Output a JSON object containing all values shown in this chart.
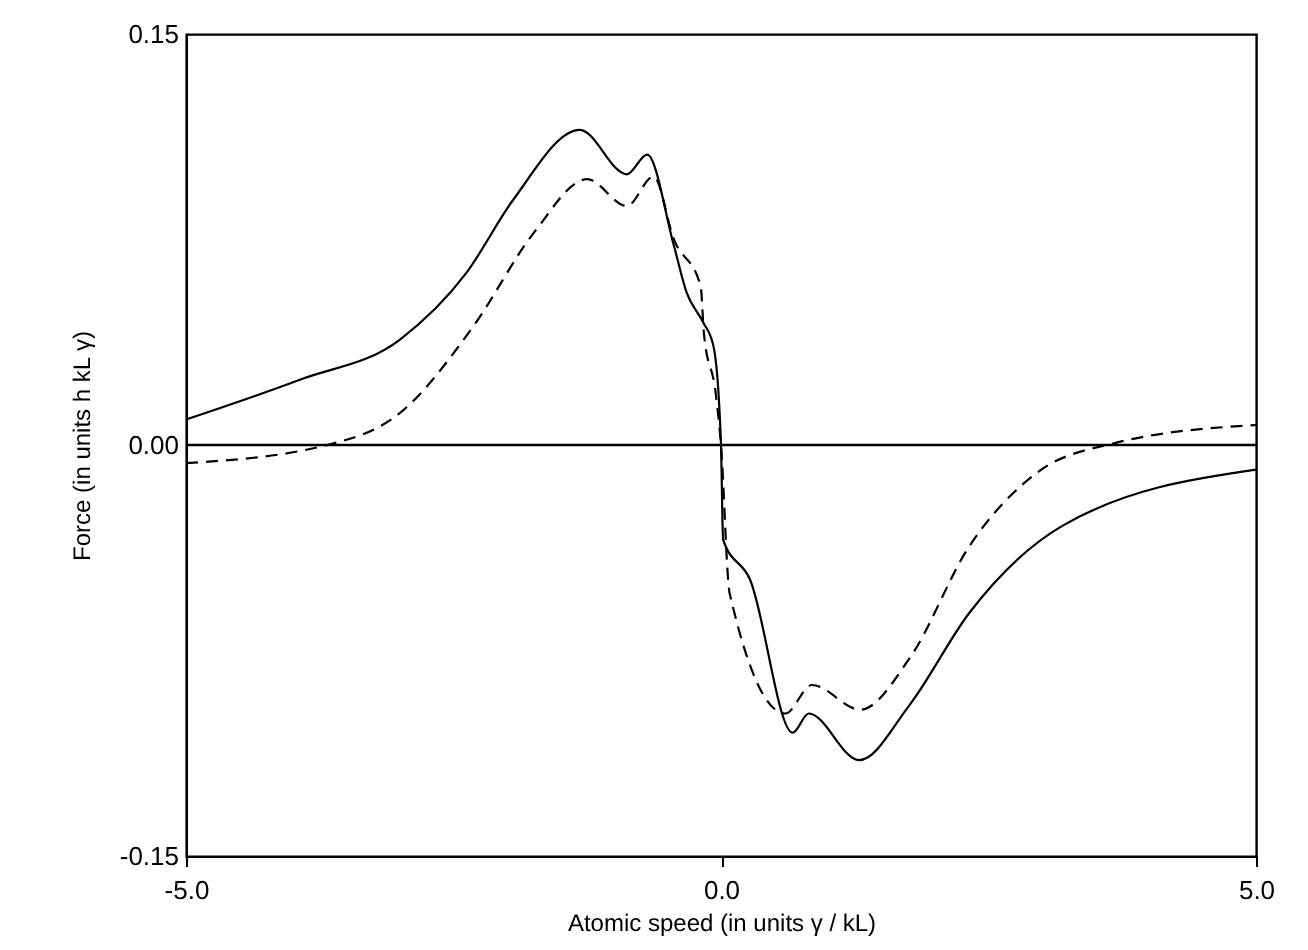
{
  "chart_data": {
    "type": "line",
    "xlabel": "Atomic speed (in units γ / kL)",
    "ylabel": "Force (in units h kL γ)",
    "xlim": [
      -5.0,
      5.0
    ],
    "xticks": [
      {
        "value": -5,
        "label": "-5.0"
      },
      {
        "value": 0,
        "label": "0.0"
      },
      {
        "value": 5,
        "label": "5.0"
      }
    ],
    "ylim": [
      -0.15,
      0.15
    ],
    "yticks": [
      {
        "value": -0.15,
        "label": "-0.15"
      },
      {
        "value": 0,
        "label": "0.00"
      },
      {
        "value": 0.15,
        "label": "0.15"
      }
    ],
    "grid": false,
    "ref_lines": [
      {
        "axis": "y",
        "value": 0,
        "color": "#000000",
        "line_style": "solid"
      }
    ],
    "series": [
      {
        "color": "#000000",
        "line_style": "solid",
        "x": [
          -5.0,
          -3.93,
          -3.0,
          -2.38,
          -1.94,
          -1.32,
          -0.88,
          -0.69,
          -0.44,
          -0.32,
          -0.17,
          -0.07,
          -0.01,
          0.0,
          0.02,
          0.27,
          0.67,
          0.82,
          1.29,
          1.76,
          2.32,
          3.19,
          5.0
        ],
        "values": [
          0.0093,
          0.0239,
          0.0385,
          0.0628,
          0.0896,
          0.115,
          0.0988,
          0.106,
          0.0727,
          0.0555,
          0.045,
          0.036,
          0.0093,
          0.0,
          -0.0345,
          -0.049,
          -0.105,
          -0.098,
          -0.115,
          -0.095,
          -0.0613,
          -0.0295,
          -0.009
        ]
      },
      {
        "color": "#000000",
        "line_style": "dashed",
        "x": [
          -5.0,
          -3.68,
          -3.0,
          -2.31,
          -1.75,
          -1.25,
          -0.88,
          -0.63,
          -0.44,
          -0.19,
          -0.16,
          -0.05,
          0.0,
          0.08,
          0.6,
          0.85,
          1.3,
          1.76,
          2.32,
          2.95,
          3.68,
          5.0
        ],
        "values": [
          -0.0066,
          0.0,
          0.0117,
          0.0436,
          0.0774,
          0.097,
          0.0872,
          0.098,
          0.075,
          0.058,
          0.0409,
          0.019,
          0.0,
          -0.054,
          -0.098,
          -0.0876,
          -0.0966,
          -0.078,
          -0.037,
          -0.0102,
          0.0007,
          0.0073
        ]
      }
    ]
  }
}
